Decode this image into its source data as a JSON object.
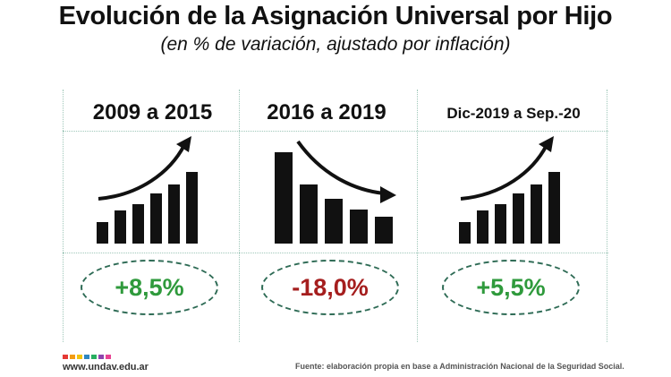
{
  "title": "Evolución de la Asignación Universal por Hijo",
  "subtitle": "(en % de variación, ajustado por inflación)",
  "panels": [
    {
      "period": "2009 a 2015",
      "value": "+8,5%",
      "trend": "up",
      "icon": "rising-bars-arrow-icon"
    },
    {
      "period": "2016 a 2019",
      "value": "-18,0%",
      "trend": "down",
      "icon": "falling-bars-arrow-icon"
    },
    {
      "period": "Dic-2019 a Sep.-20",
      "value": "+5,5%",
      "trend": "up",
      "icon": "rising-bars-arrow-icon"
    }
  ],
  "footer": {
    "site": "www.undav.edu.ar",
    "source": "Fuente: elaboración propia en base a Administración Nacional de la Seguridad Social.",
    "logo_colors": [
      "#e53935",
      "#f39c12",
      "#f1c40f",
      "#2e86c1",
      "#27ae60",
      "#8e44ad",
      "#e84393"
    ]
  },
  "colors": {
    "positive": "#2f9a3c",
    "negative": "#a51e1e",
    "grid": "#9fc7b9",
    "pill_border": "#2e6b55"
  }
}
